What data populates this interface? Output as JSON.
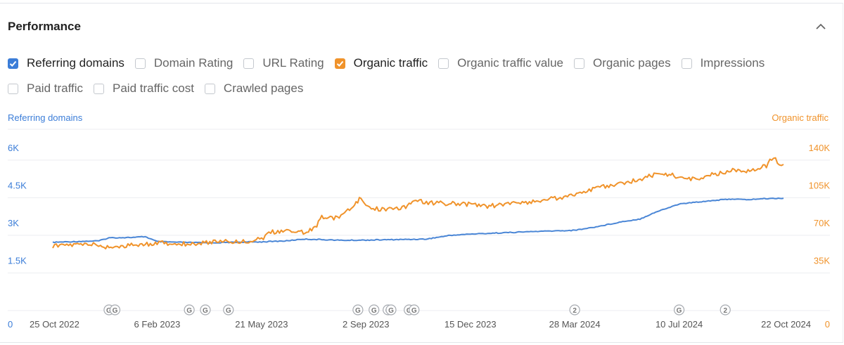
{
  "panel": {
    "title": "Performance"
  },
  "colors": {
    "referring_domains": "#4a86d6",
    "organic_traffic": "#f0932b",
    "checkbox_blue": "#3b7dd8",
    "checkbox_orange": "#f0932b"
  },
  "icons": {
    "collapse": "chevron-up-icon",
    "event_google": "google-update-icon",
    "event_numbered": "numbered-event-icon"
  },
  "checkboxes": [
    {
      "label": "Referring domains",
      "checked": true,
      "color": "#3b7dd8"
    },
    {
      "label": "Domain Rating",
      "checked": false
    },
    {
      "label": "URL Rating",
      "checked": false
    },
    {
      "label": "Organic traffic",
      "checked": true,
      "color": "#f0932b"
    },
    {
      "label": "Organic traffic value",
      "checked": false
    },
    {
      "label": "Organic pages",
      "checked": false
    },
    {
      "label": "Impressions",
      "checked": false
    },
    {
      "label": "Paid traffic",
      "checked": false
    },
    {
      "label": "Paid traffic cost",
      "checked": false
    },
    {
      "label": "Crawled pages",
      "checked": false
    }
  ],
  "chart_data": {
    "type": "line",
    "title": "",
    "grid": true,
    "legend": "none",
    "y_left": {
      "label": "Referring domains",
      "ticks": [
        "0",
        "1.5K",
        "3K",
        "4.5K",
        "6K"
      ],
      "tick_values": [
        0,
        1500,
        3000,
        4500,
        6000
      ],
      "range": [
        0,
        7200
      ]
    },
    "y_right": {
      "label": "Organic traffic",
      "ticks": [
        "0",
        "35K",
        "70K",
        "105K",
        "140K"
      ],
      "tick_values": [
        0,
        35000,
        70000,
        105000,
        140000
      ],
      "range": [
        0,
        168000
      ]
    },
    "x": {
      "range": [
        "2022-10-25",
        "2024-10-22"
      ],
      "ticks": [
        {
          "label": "25 Oct 2022",
          "date": "2022-10-25"
        },
        {
          "label": "6 Feb 2023",
          "date": "2023-02-06"
        },
        {
          "label": "21 May 2023",
          "date": "2023-05-21"
        },
        {
          "label": "2 Sep 2023",
          "date": "2023-09-02"
        },
        {
          "label": "15 Dec 2023",
          "date": "2023-12-15"
        },
        {
          "label": "28 Mar 2024",
          "date": "2024-03-28"
        },
        {
          "label": "10 Jul 2024",
          "date": "2024-07-10"
        },
        {
          "label": "22 Oct 2024",
          "date": "2024-10-22"
        }
      ]
    },
    "series": [
      {
        "name": "Referring domains",
        "axis": "left",
        "points": [
          [
            "2022-10-25",
            2720
          ],
          [
            "2022-11-15",
            2750
          ],
          [
            "2022-12-10",
            2780
          ],
          [
            "2022-12-20",
            2900
          ],
          [
            "2023-01-15",
            2920
          ],
          [
            "2023-01-25",
            2950
          ],
          [
            "2023-02-06",
            2750
          ],
          [
            "2023-03-01",
            2720
          ],
          [
            "2023-04-01",
            2700
          ],
          [
            "2023-05-01",
            2730
          ],
          [
            "2023-05-21",
            2740
          ],
          [
            "2023-06-15",
            2780
          ],
          [
            "2023-07-01",
            2850
          ],
          [
            "2023-07-20",
            2830
          ],
          [
            "2023-08-10",
            2800
          ],
          [
            "2023-09-02",
            2810
          ],
          [
            "2023-10-01",
            2830
          ],
          [
            "2023-11-01",
            2850
          ],
          [
            "2023-11-25",
            3000
          ],
          [
            "2023-12-15",
            3050
          ],
          [
            "2024-01-15",
            3100
          ],
          [
            "2024-02-15",
            3150
          ],
          [
            "2024-03-28",
            3200
          ],
          [
            "2024-04-20",
            3350
          ],
          [
            "2024-05-15",
            3550
          ],
          [
            "2024-06-01",
            3650
          ],
          [
            "2024-06-15",
            3900
          ],
          [
            "2024-07-10",
            4250
          ],
          [
            "2024-08-10",
            4380
          ],
          [
            "2024-09-01",
            4450
          ],
          [
            "2024-09-15",
            4420
          ],
          [
            "2024-10-01",
            4460
          ],
          [
            "2024-10-22",
            4480
          ]
        ]
      },
      {
        "name": "Organic traffic",
        "axis": "right",
        "points": [
          [
            "2022-10-25",
            60000
          ],
          [
            "2022-11-15",
            61000
          ],
          [
            "2022-12-01",
            62000
          ],
          [
            "2022-12-15",
            59000
          ],
          [
            "2023-01-01",
            60000
          ],
          [
            "2023-01-20",
            61000
          ],
          [
            "2023-02-06",
            63000
          ],
          [
            "2023-03-01",
            62000
          ],
          [
            "2023-03-20",
            62500
          ],
          [
            "2023-04-10",
            65000
          ],
          [
            "2023-05-01",
            64000
          ],
          [
            "2023-05-21",
            67000
          ],
          [
            "2023-06-01",
            73000
          ],
          [
            "2023-06-20",
            74000
          ],
          [
            "2023-07-05",
            73000
          ],
          [
            "2023-07-15",
            78000
          ],
          [
            "2023-07-20",
            88000
          ],
          [
            "2023-08-01",
            85000
          ],
          [
            "2023-08-10",
            90000
          ],
          [
            "2023-08-20",
            98000
          ],
          [
            "2023-08-28",
            105000
          ],
          [
            "2023-09-02",
            96000
          ],
          [
            "2023-09-20",
            94000
          ],
          [
            "2023-10-10",
            96000
          ],
          [
            "2023-10-20",
            102000
          ],
          [
            "2023-11-10",
            100000
          ],
          [
            "2023-12-15",
            99000
          ],
          [
            "2024-01-01",
            97000
          ],
          [
            "2024-01-20",
            99000
          ],
          [
            "2024-02-10",
            101000
          ],
          [
            "2024-03-01",
            103000
          ],
          [
            "2024-03-28",
            108000
          ],
          [
            "2024-04-15",
            113000
          ],
          [
            "2024-05-01",
            116000
          ],
          [
            "2024-05-20",
            119000
          ],
          [
            "2024-06-10",
            125000
          ],
          [
            "2024-06-25",
            128000
          ],
          [
            "2024-07-10",
            124000
          ],
          [
            "2024-07-25",
            122000
          ],
          [
            "2024-08-10",
            126000
          ],
          [
            "2024-08-25",
            129000
          ],
          [
            "2024-09-05",
            131000
          ],
          [
            "2024-09-20",
            130000
          ],
          [
            "2024-10-05",
            135000
          ],
          [
            "2024-10-12",
            143000
          ],
          [
            "2024-10-18",
            137000
          ],
          [
            "2024-10-22",
            136000
          ]
        ]
      }
    ],
    "annotations": [
      {
        "date": "2022-12-20",
        "label": "G"
      },
      {
        "date": "2022-12-26",
        "label": "G"
      },
      {
        "date": "2023-03-10",
        "label": "G"
      },
      {
        "date": "2023-03-26",
        "label": "G"
      },
      {
        "date": "2023-04-18",
        "label": "G"
      },
      {
        "date": "2023-08-25",
        "label": "G"
      },
      {
        "date": "2023-09-10",
        "label": "G"
      },
      {
        "date": "2023-09-24",
        "label": "G"
      },
      {
        "date": "2023-09-27",
        "label": "G"
      },
      {
        "date": "2023-10-15",
        "label": "G"
      },
      {
        "date": "2023-10-20",
        "label": "G"
      },
      {
        "date": "2024-03-28",
        "label": "2"
      },
      {
        "date": "2024-07-10",
        "label": "G"
      },
      {
        "date": "2024-08-25",
        "label": "2"
      }
    ]
  }
}
